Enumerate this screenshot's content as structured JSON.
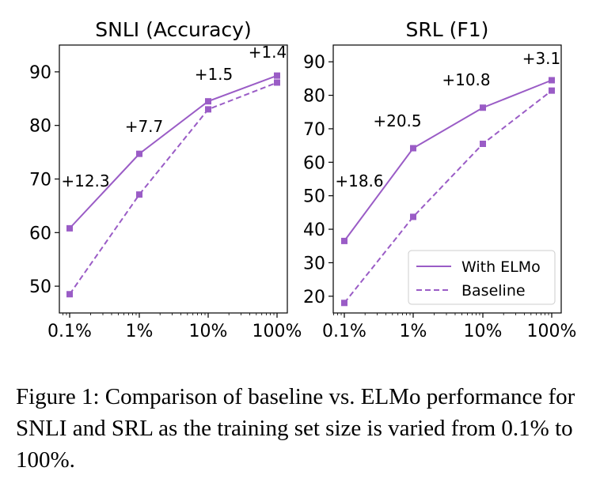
{
  "chart_data": [
    {
      "type": "line",
      "title": "SNLI (Accuracy)",
      "categories": [
        "0.1%",
        "1%",
        "10%",
        "100%"
      ],
      "ylim": [
        45,
        95
      ],
      "yticks": [
        50,
        60,
        70,
        80,
        90
      ],
      "xlabel": "",
      "ylabel": "",
      "series": [
        {
          "name": "With ELMo",
          "values": [
            60.8,
            74.7,
            84.5,
            89.3
          ]
        },
        {
          "name": "Baseline",
          "values": [
            48.5,
            67.1,
            83.0,
            88.0
          ]
        }
      ],
      "annotations": [
        "+12.3",
        "+7.7",
        "+1.5",
        "+1.4"
      ]
    },
    {
      "type": "line",
      "title": "SRL (F1)",
      "categories": [
        "0.1%",
        "1%",
        "10%",
        "100%"
      ],
      "ylim": [
        15,
        95
      ],
      "yticks": [
        20,
        30,
        40,
        50,
        60,
        70,
        80,
        90
      ],
      "xlabel": "",
      "ylabel": "",
      "series": [
        {
          "name": "With ELMo",
          "values": [
            36.5,
            64.2,
            76.3,
            84.5
          ]
        },
        {
          "name": "Baseline",
          "values": [
            18.0,
            43.7,
            65.5,
            81.4
          ]
        }
      ],
      "annotations": [
        "+18.6",
        "+20.5",
        "+10.8",
        "+3.1"
      ],
      "legend": {
        "position": "lower-right",
        "entries": [
          "With ELMo",
          "Baseline"
        ]
      }
    }
  ],
  "colors": {
    "line": "#9a5cc6",
    "marker": "#9a5cc6"
  },
  "caption": "Figure 1: Comparison of baseline vs. ELMo performance for SNLI and SRL as the training set size is varied from 0.1% to 100%."
}
